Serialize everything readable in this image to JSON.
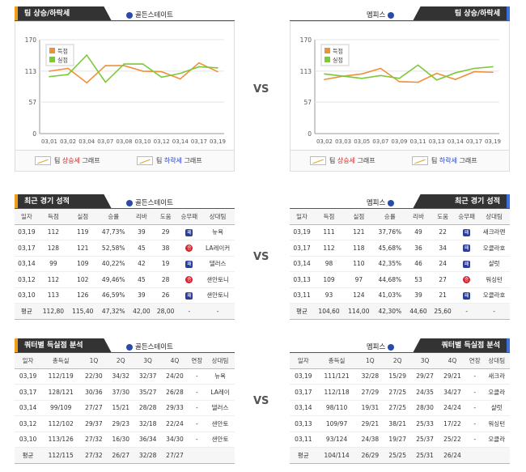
{
  "vs_label": "VS",
  "sections": {
    "trend_title": "팀 상승/하락세",
    "recent_title": "최근 경기 성적",
    "quarter_title": "쿼터별 득실점 분석"
  },
  "teams": {
    "left": "골든스테이트",
    "right": "멤피스"
  },
  "chart_legend": {
    "score": "득점",
    "allowed": "실점"
  },
  "graph_legend": {
    "up_prefix": "팀 ",
    "up_word": "상승세",
    "up_suffix": " 그래프",
    "down_prefix": "팀 ",
    "down_word": "하락세",
    "down_suffix": " 그래프"
  },
  "chart_data": [
    {
      "type": "line",
      "x": [
        "03,01",
        "03,02",
        "03,04",
        "03,07",
        "03,08",
        "03,10",
        "03,12",
        "03,14",
        "03,17",
        "03,19"
      ],
      "yticks": [
        0,
        57,
        113,
        170
      ],
      "ylim": [
        0,
        170
      ],
      "series": [
        {
          "name": "득점",
          "color": "#f0903a",
          "values": [
            113,
            118,
            92,
            123,
            123,
            113,
            112,
            99,
            128,
            112
          ]
        },
        {
          "name": "실점",
          "color": "#7cc93a",
          "values": [
            103,
            107,
            142,
            93,
            126,
            126,
            102,
            109,
            121,
            119
          ]
        }
      ]
    },
    {
      "type": "line",
      "x": [
        "03,02",
        "03,03",
        "03,05",
        "03,07",
        "03,09",
        "03,11",
        "03,13",
        "03,14",
        "03,17",
        "03,19"
      ],
      "yticks": [
        0,
        57,
        113,
        170
      ],
      "ylim": [
        0,
        170
      ],
      "series": [
        {
          "name": "득점",
          "color": "#f0903a",
          "values": [
            98,
            104,
            108,
            118,
            94,
            93,
            109,
            98,
            112,
            111
          ]
        },
        {
          "name": "실점",
          "color": "#7cc93a",
          "values": [
            108,
            104,
            100,
            105,
            100,
            124,
            97,
            110,
            118,
            121
          ]
        }
      ]
    }
  ],
  "recent": {
    "headers": [
      "일자",
      "득점",
      "실점",
      "승률",
      "리바",
      "도움",
      "승무패",
      "상대팀"
    ],
    "left_rows": [
      [
        "03,19",
        "112",
        "119",
        "47,73%",
        "39",
        "29",
        "패",
        "뉴욕"
      ],
      [
        "03,17",
        "128",
        "121",
        "52,58%",
        "45",
        "38",
        "승",
        "LA레이커"
      ],
      [
        "03,14",
        "99",
        "109",
        "40,22%",
        "42",
        "19",
        "패",
        "댈러스"
      ],
      [
        "03,12",
        "112",
        "102",
        "49,46%",
        "45",
        "28",
        "승",
        "샌안토니"
      ],
      [
        "03,10",
        "113",
        "126",
        "46,59%",
        "39",
        "26",
        "패",
        "샌안토니"
      ]
    ],
    "left_avg": [
      "평균",
      "112,80",
      "115,40",
      "47,32%",
      "42,00",
      "28,00",
      "-",
      "-"
    ],
    "right_rows": [
      [
        "03,19",
        "111",
        "121",
        "37,76%",
        "49",
        "22",
        "패",
        "새크라멘"
      ],
      [
        "03,17",
        "112",
        "118",
        "45,68%",
        "36",
        "34",
        "패",
        "오클라호"
      ],
      [
        "03,14",
        "98",
        "110",
        "42,35%",
        "46",
        "24",
        "패",
        "샬럿"
      ],
      [
        "03,13",
        "109",
        "97",
        "44,68%",
        "53",
        "27",
        "승",
        "워싱턴"
      ],
      [
        "03,11",
        "93",
        "124",
        "41,03%",
        "39",
        "21",
        "패",
        "오클라호"
      ]
    ],
    "right_avg": [
      "평균",
      "104,60",
      "114,00",
      "42,30%",
      "44,60",
      "25,60",
      "-",
      "-"
    ]
  },
  "quarter": {
    "headers": [
      "일자",
      "총득실",
      "1Q",
      "2Q",
      "3Q",
      "4Q",
      "연장",
      "상대팀"
    ],
    "left_rows": [
      [
        "03,19",
        "112/119",
        "22/30",
        "34/32",
        "32/37",
        "24/20",
        "-",
        "뉴욕"
      ],
      [
        "03,17",
        "128/121",
        "30/36",
        "37/30",
        "35/27",
        "26/28",
        "-",
        "LA레이"
      ],
      [
        "03,14",
        "99/109",
        "27/27",
        "15/21",
        "28/28",
        "29/33",
        "-",
        "댈러스"
      ],
      [
        "03,12",
        "112/102",
        "29/37",
        "29/23",
        "32/18",
        "22/24",
        "-",
        "샌안토"
      ],
      [
        "03,10",
        "113/126",
        "27/32",
        "16/30",
        "36/34",
        "34/30",
        "-",
        "샌안토"
      ]
    ],
    "left_avg": [
      "평균",
      "112/115",
      "27/32",
      "26/27",
      "32/28",
      "27/27",
      "",
      ""
    ],
    "right_rows": [
      [
        "03,19",
        "111/121",
        "32/28",
        "15/29",
        "29/27",
        "29/21",
        "-",
        "새크라"
      ],
      [
        "03,17",
        "112/118",
        "27/29",
        "27/25",
        "24/35",
        "34/27",
        "-",
        "오클라"
      ],
      [
        "03,14",
        "98/110",
        "19/31",
        "27/25",
        "28/30",
        "24/24",
        "-",
        "샬럿"
      ],
      [
        "03,13",
        "109/97",
        "29/21",
        "38/21",
        "25/33",
        "17/22",
        "-",
        "워싱턴"
      ],
      [
        "03,11",
        "93/124",
        "24/38",
        "19/27",
        "25/37",
        "25/22",
        "-",
        "오클라"
      ]
    ],
    "right_avg": [
      "평균",
      "104/114",
      "26/29",
      "25/25",
      "25/31",
      "26/24",
      "",
      ""
    ]
  }
}
